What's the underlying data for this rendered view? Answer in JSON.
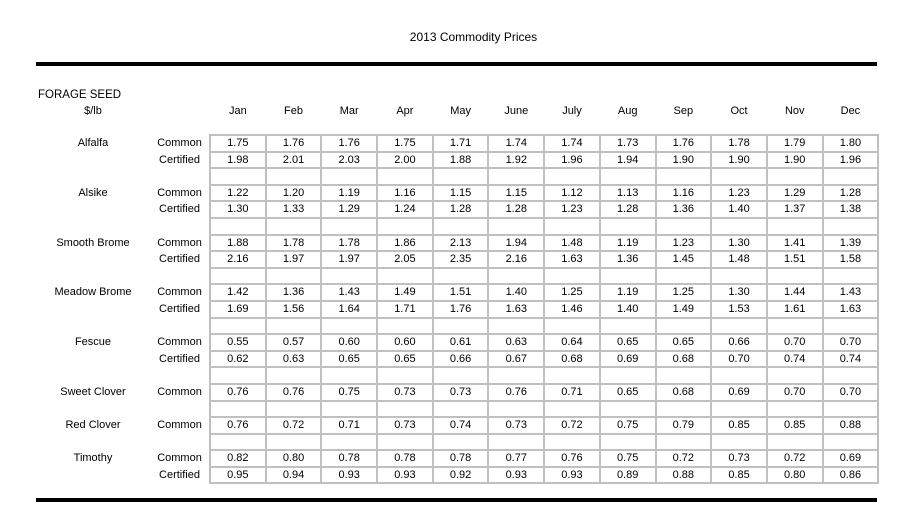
{
  "title": "2013 Commodity Prices",
  "section": {
    "name": "FORAGE SEED",
    "unit": "$/lb"
  },
  "months": [
    "Jan",
    "Feb",
    "Mar",
    "Apr",
    "May",
    "June",
    "July",
    "Aug",
    "Sep",
    "Oct",
    "Nov",
    "Dec"
  ],
  "colors": {
    "grid_border": "#c0c0c0",
    "rule": "#000000",
    "text": "#000000",
    "cell_bg": "#ffffff"
  },
  "table": {
    "rows": [
      {
        "commodity": "Alfalfa",
        "grade": "Common",
        "values": [
          "1.75",
          "1.76",
          "1.76",
          "1.75",
          "1.71",
          "1.74",
          "1.74",
          "1.73",
          "1.76",
          "1.78",
          "1.79",
          "1.80"
        ]
      },
      {
        "commodity": "",
        "grade": "Certified",
        "values": [
          "1.98",
          "2.01",
          "2.03",
          "2.00",
          "1.88",
          "1.92",
          "1.96",
          "1.94",
          "1.90",
          "1.90",
          "1.90",
          "1.96"
        ]
      },
      {
        "spacer": true
      },
      {
        "commodity": "Alsike",
        "grade": "Common",
        "values": [
          "1.22",
          "1.20",
          "1.19",
          "1.16",
          "1.15",
          "1.15",
          "1.12",
          "1.13",
          "1.16",
          "1.23",
          "1.29",
          "1.28"
        ]
      },
      {
        "commodity": "",
        "grade": "Certified",
        "values": [
          "1.30",
          "1.33",
          "1.29",
          "1.24",
          "1.28",
          "1.28",
          "1.23",
          "1.28",
          "1.36",
          "1.40",
          "1.37",
          "1.38"
        ]
      },
      {
        "spacer": true
      },
      {
        "commodity": "Smooth Brome",
        "grade": "Common",
        "values": [
          "1.88",
          "1.78",
          "1.78",
          "1.86",
          "2.13",
          "1.94",
          "1.48",
          "1.19",
          "1.23",
          "1.30",
          "1.41",
          "1.39"
        ]
      },
      {
        "commodity": "",
        "grade": "Certified",
        "values": [
          "2.16",
          "1.97",
          "1.97",
          "2.05",
          "2.35",
          "2.16",
          "1.63",
          "1.36",
          "1.45",
          "1.48",
          "1.51",
          "1.58"
        ]
      },
      {
        "spacer": true
      },
      {
        "commodity": "Meadow Brome",
        "grade": "Common",
        "values": [
          "1.42",
          "1.36",
          "1.43",
          "1.49",
          "1.51",
          "1.40",
          "1.25",
          "1.19",
          "1.25",
          "1.30",
          "1.44",
          "1.43"
        ]
      },
      {
        "commodity": "",
        "grade": "Certified",
        "values": [
          "1.69",
          "1.56",
          "1.64",
          "1.71",
          "1.76",
          "1.63",
          "1.46",
          "1.40",
          "1.49",
          "1.53",
          "1.61",
          "1.63"
        ]
      },
      {
        "spacer": true
      },
      {
        "commodity": "Fescue",
        "grade": "Common",
        "values": [
          "0.55",
          "0.57",
          "0.60",
          "0.60",
          "0.61",
          "0.63",
          "0.64",
          "0.65",
          "0.65",
          "0.66",
          "0.70",
          "0.70"
        ]
      },
      {
        "commodity": "",
        "grade": "Certified",
        "values": [
          "0.62",
          "0.63",
          "0.65",
          "0.65",
          "0.66",
          "0.67",
          "0.68",
          "0.69",
          "0.68",
          "0.70",
          "0.74",
          "0.74"
        ]
      },
      {
        "spacer": true
      },
      {
        "commodity": "Sweet Clover",
        "grade": "Common",
        "values": [
          "0.76",
          "0.76",
          "0.75",
          "0.73",
          "0.73",
          "0.76",
          "0.71",
          "0.65",
          "0.68",
          "0.69",
          "0.70",
          "0.70"
        ]
      },
      {
        "spacer": true
      },
      {
        "commodity": "Red Clover",
        "grade": "Common",
        "values": [
          "0.76",
          "0.72",
          "0.71",
          "0.73",
          "0.74",
          "0.73",
          "0.72",
          "0.75",
          "0.79",
          "0.85",
          "0.85",
          "0.88"
        ]
      },
      {
        "spacer": true
      },
      {
        "commodity": "Timothy",
        "grade": "Common",
        "values": [
          "0.82",
          "0.80",
          "0.78",
          "0.78",
          "0.78",
          "0.77",
          "0.76",
          "0.75",
          "0.72",
          "0.73",
          "0.72",
          "0.69"
        ]
      },
      {
        "commodity": "",
        "grade": "Certified",
        "values": [
          "0.95",
          "0.94",
          "0.93",
          "0.93",
          "0.92",
          "0.93",
          "0.93",
          "0.89",
          "0.88",
          "0.85",
          "0.80",
          "0.86"
        ]
      }
    ]
  }
}
